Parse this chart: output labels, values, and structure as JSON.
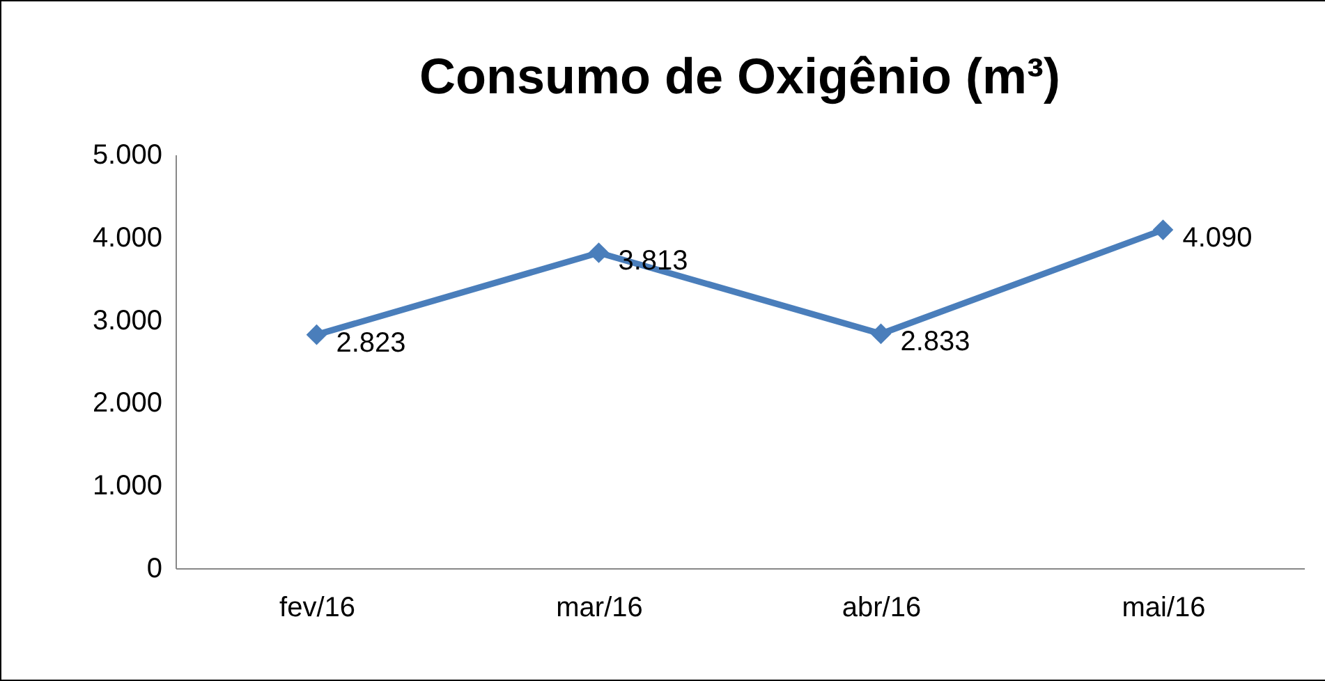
{
  "chart_data": {
    "type": "line",
    "title": "Consumo de Oxigênio (m³)",
    "categories": [
      "fev/16",
      "mar/16",
      "abr/16",
      "mai/16"
    ],
    "series": [
      {
        "color": "#4a7ebb",
        "values": [
          2823,
          3813,
          2833,
          4090
        ],
        "value_labels": [
          "2.823",
          "3.813",
          "2.833",
          "4.090"
        ]
      }
    ],
    "ylim": [
      0,
      5000
    ],
    "yticks": [
      {
        "value": 0,
        "label": "0"
      },
      {
        "value": 1000,
        "label": "1.000"
      },
      {
        "value": 2000,
        "label": "2.000"
      },
      {
        "value": 3000,
        "label": "3.000"
      },
      {
        "value": 4000,
        "label": "4.000"
      },
      {
        "value": 5000,
        "label": "5.000"
      }
    ],
    "grid": false,
    "legend": false,
    "marker": "diamond",
    "line_style": "solid"
  }
}
